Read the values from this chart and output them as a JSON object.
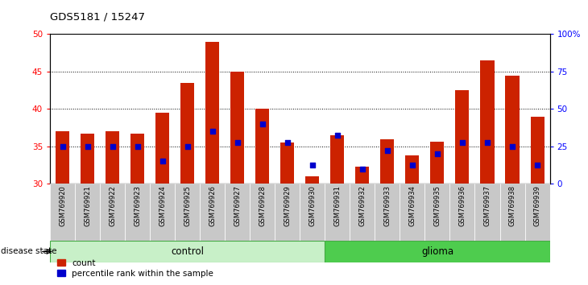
{
  "title": "GDS5181 / 15247",
  "samples": [
    "GSM769920",
    "GSM769921",
    "GSM769922",
    "GSM769923",
    "GSM769924",
    "GSM769925",
    "GSM769926",
    "GSM769927",
    "GSM769928",
    "GSM769929",
    "GSM769930",
    "GSM769931",
    "GSM769932",
    "GSM769933",
    "GSM769934",
    "GSM769935",
    "GSM769936",
    "GSM769937",
    "GSM769938",
    "GSM769939"
  ],
  "bar_heights": [
    37.0,
    36.7,
    37.0,
    36.7,
    39.5,
    43.5,
    49.0,
    45.0,
    40.0,
    35.5,
    31.0,
    36.5,
    32.3,
    36.0,
    33.8,
    35.6,
    42.5,
    46.5,
    44.5,
    39.0
  ],
  "percentile_values": [
    35.0,
    35.0,
    35.0,
    35.0,
    33.0,
    35.0,
    37.0,
    35.5,
    38.0,
    35.5,
    32.5,
    36.5,
    32.0,
    34.5,
    32.5,
    34.0,
    35.5,
    35.5,
    35.0,
    32.5
  ],
  "bar_color": "#CC2200",
  "dot_color": "#0000CC",
  "bg_color": "#C8C8C8",
  "ctrl_color": "#C8F0C8",
  "glioma_color": "#4ECC4E",
  "ctrl_count": 11,
  "glioma_count": 9,
  "ylim_left": [
    30,
    50
  ],
  "ylim_right": [
    0,
    100
  ],
  "yticks_left": [
    30,
    35,
    40,
    45,
    50
  ],
  "yticks_right": [
    0,
    25,
    50,
    75,
    100
  ],
  "ytick_labels_right": [
    "0",
    "25",
    "50",
    "75",
    "100%"
  ],
  "legend_count": "count",
  "legend_pct": "percentile rank within the sample",
  "disease_state_label": "disease state"
}
